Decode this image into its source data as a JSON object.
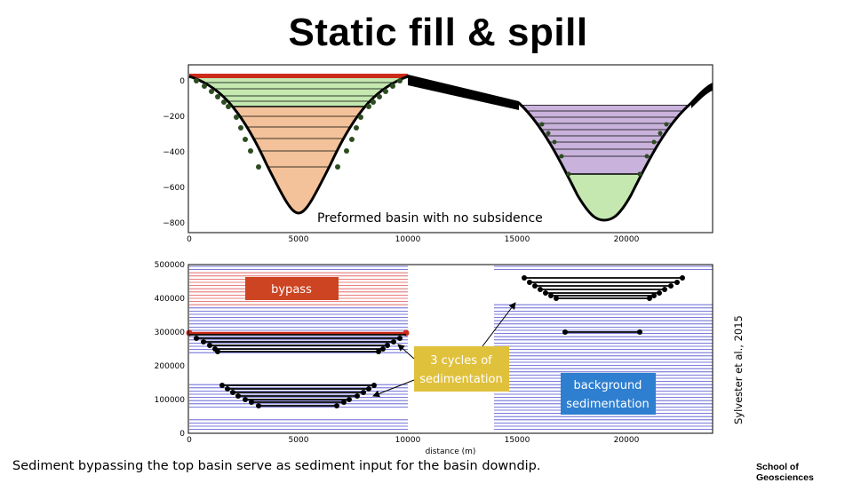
{
  "title": "Static fill & spill",
  "caption": "Sediment bypassing the top basin serve as sediment input for the basin downdip.",
  "credit": "Sylvester et al., 2015",
  "school": "School of Geosciences",
  "colors": {
    "upper_fill": "#f3c29a",
    "upper_top_fill": "#c4e8b0",
    "bypass_band": "#d2e8c0",
    "lower_fill": "#c9b2dc",
    "lower_bottom_fill": "#c4e8b0",
    "red": "#cc2a1a",
    "blue_lines": "#4f4fd0",
    "red_lines": "#e05555",
    "bypass_box": "#cc4422",
    "cycles_box": "#e0c13c",
    "background_box": "#2f7fd0"
  },
  "top_panel": {
    "annotation": "Preformed basin with no subsidence",
    "x_ticks": [
      "0",
      "5000",
      "10000",
      "15000",
      "20000"
    ],
    "y_ticks": [
      "0",
      "−200",
      "−400",
      "−600",
      "−800"
    ]
  },
  "bottom_panel": {
    "x_ticks": [
      "0",
      "5000",
      "10000",
      "15000",
      "20000"
    ],
    "y_ticks": [
      "500000",
      "400000",
      "300000",
      "200000",
      "100000",
      "0"
    ],
    "xlabel": "distance (m)",
    "labels": {
      "bypass": "bypass",
      "cycles_line1": "3 cycles of",
      "cycles_line2": "sedimentation",
      "background_line1": "background",
      "background_line2": "sedimentation"
    }
  }
}
